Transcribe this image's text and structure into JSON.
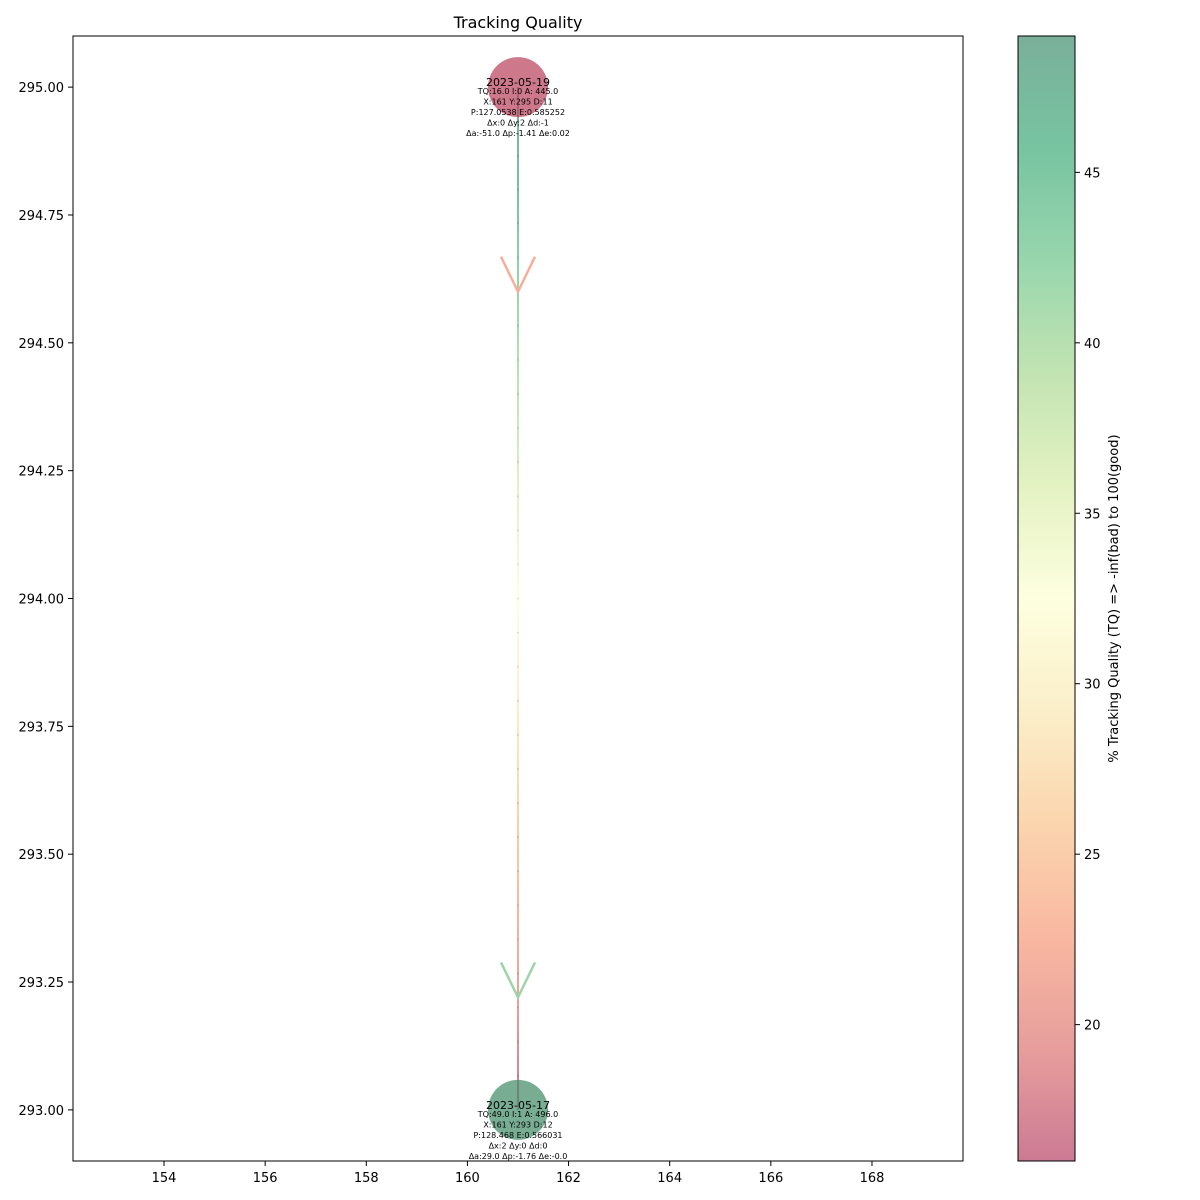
{
  "chart_data": {
    "type": "scatter",
    "title": "Tracking Quality",
    "xlabel": "",
    "ylabel": "",
    "xlim": [
      152.2,
      169.8
    ],
    "ylim": [
      292.9,
      295.1
    ],
    "xticks": [
      154,
      156,
      158,
      160,
      162,
      164,
      166,
      168
    ],
    "yticks": [
      293.0,
      293.25,
      293.5,
      293.75,
      294.0,
      294.25,
      294.5,
      294.75,
      295.0
    ],
    "grid": false,
    "points": [
      {
        "date": "2023-05-17",
        "x": 161,
        "y": 293,
        "tq": 49,
        "color": "#3f8a65",
        "lines": [
          "TQ:49.0 I:1 A: 496.0",
          "X:161 Y:293 D:12",
          "P:128.468 E:0.566031",
          "Δx:2 Δy:0 Δd:0",
          "Δa:29.0 Δp:-1.76 Δe:-0.0"
        ]
      },
      {
        "date": "2023-05-19",
        "x": 161,
        "y": 295,
        "tq": 16,
        "color": "#b8405a",
        "lines": [
          "TQ:16.0 I:0 A: 445.0",
          "X:161 Y:295 D:11",
          "P:127.0538 E:0.585252",
          "Δx:0 Δy:2 Δd:-1",
          "Δa:-51.0 Δp:-1.41 Δe:0.02"
        ]
      }
    ],
    "arrowheads": [
      {
        "x": 161,
        "y": 293.22,
        "color": "#9fd3a9"
      },
      {
        "x": 161,
        "y": 294.6,
        "color": "#f4b09a"
      }
    ],
    "colorbar": {
      "label": "% Tracking Quality (TQ) =>  -inf(bad) to 100(good)",
      "range": [
        16,
        49
      ],
      "ticks": [
        20,
        25,
        30,
        35,
        40,
        45
      ],
      "colors": [
        "#cc7a94",
        "#e79e9c",
        "#f9b8a1",
        "#fbd5ae",
        "#fbefc9",
        "#fdffdf",
        "#e4f2c2",
        "#c2e4b2",
        "#98d6ad",
        "#77c4a1",
        "#7aaf9a"
      ]
    }
  }
}
